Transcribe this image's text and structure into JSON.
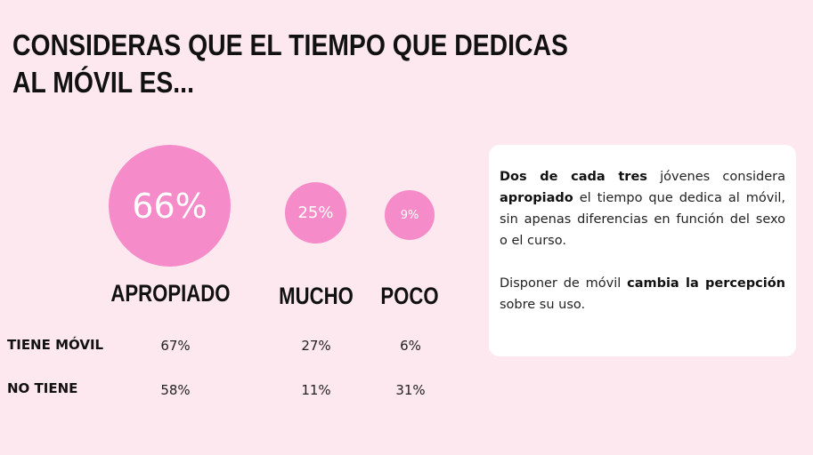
{
  "title": {
    "line1": "CONSIDERAS QUE EL TIEMPO QUE DEDICAS",
    "line2": "AL MÓVIL ES..."
  },
  "colors": {
    "background": "#fde8ef",
    "bubble": "#f58bc8",
    "card": "#ffffff"
  },
  "chart_data": {
    "type": "bubble",
    "categories": [
      "APROPIADO",
      "MUCHO",
      "POCO"
    ],
    "values": [
      66,
      25,
      9
    ],
    "value_labels": [
      "66%",
      "25%",
      "9%"
    ],
    "unit": "%",
    "breakdown": {
      "rows": [
        {
          "label": "TIENE MÓVIL",
          "values": [
            "67%",
            "27%",
            "6%"
          ]
        },
        {
          "label": "NO TIENE",
          "values": [
            "58%",
            "11%",
            "31%"
          ]
        }
      ]
    }
  },
  "note": {
    "p1": {
      "b1": "Dos de cada tres",
      "t1": " jóvenes considera ",
      "b2": "apropiado",
      "t2": " el tiempo que dedica al móvil, sin apenas diferencias en función del sexo o el curso."
    },
    "p2": {
      "t1": "Disponer de móvil ",
      "b1": "cambia la percepción",
      "t2": " sobre su uso."
    }
  }
}
